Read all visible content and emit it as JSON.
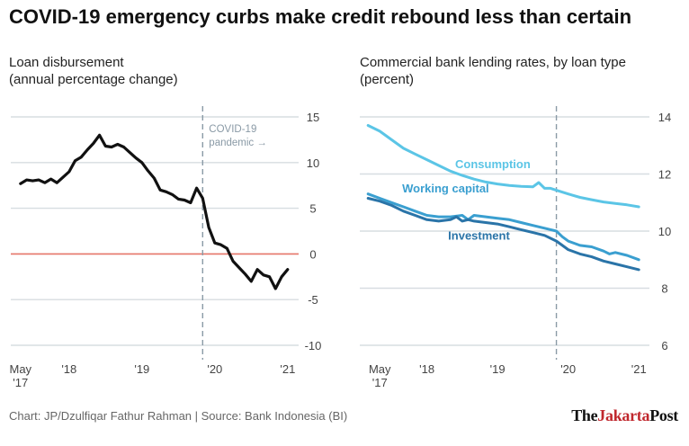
{
  "title": "COVID-19 emergency curbs make credit rebound less than certain",
  "footer": "Chart: JP/Dzulfiqar Fathur Rahman | Source: Bank Indonesia (BI)",
  "logo": {
    "part1": "The",
    "part2": "Jakarta",
    "part3": "Post"
  },
  "colors": {
    "loan": "#111111",
    "zero": "#e8776a",
    "consumption": "#5bc5e6",
    "working_capital": "#3a9fd0",
    "investment": "#2a74a8",
    "grid": "#d7dde1",
    "dashed": "#8a9aa6"
  },
  "chart_data": [
    {
      "type": "line",
      "title_lines": [
        "Loan disbursement",
        "(annual percentage change)"
      ],
      "ylim": [
        -10,
        15
      ],
      "yticks": [
        "15",
        "10",
        "5",
        "0",
        "-5",
        "-10"
      ],
      "ytick_values": [
        15,
        10,
        5,
        0,
        -5,
        -10
      ],
      "xticks": [
        {
          "label": "May",
          "label2": "'17",
          "x": 2017.333
        },
        {
          "label": "'18",
          "label2": "",
          "x": 2018.0
        },
        {
          "label": "'19",
          "label2": "",
          "x": 2019.0
        },
        {
          "label": "'20",
          "label2": "",
          "x": 2020.0
        },
        {
          "label": "'21",
          "label2": "",
          "x": 2021.0
        }
      ],
      "xlim": [
        2017.2,
        2021.15
      ],
      "annotation": {
        "lines": [
          "COVID-19",
          "pandemic →"
        ],
        "x": 2019.833
      },
      "series": [
        {
          "key": "loan",
          "x": [
            2017.333,
            2017.417,
            2017.5,
            2017.583,
            2017.667,
            2017.75,
            2017.833,
            2017.917,
            2018.0,
            2018.083,
            2018.167,
            2018.25,
            2018.333,
            2018.417,
            2018.5,
            2018.583,
            2018.667,
            2018.75,
            2018.833,
            2018.917,
            2019.0,
            2019.083,
            2019.167,
            2019.25,
            2019.333,
            2019.417,
            2019.5,
            2019.583,
            2019.667,
            2019.75,
            2019.833,
            2019.917,
            2020.0,
            2020.083,
            2020.167,
            2020.25,
            2020.333,
            2020.417,
            2020.5,
            2020.583,
            2020.667,
            2020.75,
            2020.833,
            2020.917,
            2021.0
          ],
          "values": [
            7.7,
            8.1,
            8.0,
            8.1,
            7.8,
            8.2,
            7.8,
            8.4,
            9.0,
            10.2,
            10.6,
            11.4,
            12.1,
            13.0,
            11.8,
            11.7,
            12.0,
            11.7,
            11.1,
            10.5,
            10.0,
            9.1,
            8.3,
            7.0,
            6.8,
            6.5,
            6.0,
            5.9,
            5.6,
            7.2,
            6.1,
            2.9,
            1.2,
            1.0,
            0.6,
            -0.8,
            -1.5,
            -2.2,
            -3.0,
            -1.7,
            -2.3,
            -2.5,
            -3.8,
            -2.5,
            -1.7
          ]
        }
      ]
    },
    {
      "type": "line",
      "title_lines": [
        "Commercial bank lending rates, by loan type",
        "(percent)"
      ],
      "ylim": [
        6,
        14
      ],
      "yticks": [
        "14",
        "12",
        "10",
        "8",
        "6"
      ],
      "ytick_values": [
        14,
        12,
        10,
        8,
        6
      ],
      "xticks": [
        {
          "label": "May",
          "label2": "'17",
          "x": 2017.333
        },
        {
          "label": "'18",
          "label2": "",
          "x": 2018.0
        },
        {
          "label": "'19",
          "label2": "",
          "x": 2019.0
        },
        {
          "label": "'20",
          "label2": "",
          "x": 2020.0
        },
        {
          "label": "'21",
          "label2": "",
          "x": 2021.0
        }
      ],
      "xlim": [
        2017.05,
        2021.15
      ],
      "dashed_x": 2019.833,
      "series": [
        {
          "name": "Consumption",
          "key": "consumption",
          "label_at": {
            "x": 2018.4,
            "y": 12.2
          },
          "x": [
            2017.167,
            2017.333,
            2017.5,
            2017.667,
            2017.833,
            2018.0,
            2018.167,
            2018.333,
            2018.5,
            2018.667,
            2018.833,
            2019.0,
            2019.167,
            2019.333,
            2019.5,
            2019.583,
            2019.667,
            2019.75,
            2019.833,
            2020.0,
            2020.167,
            2020.333,
            2020.5,
            2020.667,
            2020.833,
            2021.0
          ],
          "values": [
            13.7,
            13.5,
            13.2,
            12.9,
            12.7,
            12.5,
            12.3,
            12.1,
            11.95,
            11.82,
            11.72,
            11.65,
            11.6,
            11.57,
            11.55,
            11.7,
            11.5,
            11.5,
            11.43,
            11.3,
            11.18,
            11.1,
            11.02,
            10.97,
            10.92,
            10.85
          ]
        },
        {
          "name": "Working capital",
          "key": "working_capital",
          "label_at": {
            "x": 2017.65,
            "y": 11.35
          },
          "x": [
            2017.167,
            2017.333,
            2017.5,
            2017.667,
            2017.833,
            2018.0,
            2018.167,
            2018.333,
            2018.5,
            2018.583,
            2018.667,
            2018.833,
            2019.0,
            2019.167,
            2019.333,
            2019.5,
            2019.667,
            2019.833,
            2019.917,
            2020.0,
            2020.167,
            2020.333,
            2020.5,
            2020.583,
            2020.667,
            2020.833,
            2021.0
          ],
          "values": [
            11.3,
            11.15,
            11.0,
            10.85,
            10.7,
            10.55,
            10.5,
            10.5,
            10.55,
            10.4,
            10.55,
            10.5,
            10.45,
            10.4,
            10.3,
            10.2,
            10.1,
            10.0,
            9.8,
            9.65,
            9.5,
            9.45,
            9.3,
            9.2,
            9.25,
            9.15,
            9.0
          ]
        },
        {
          "name": "Investment",
          "key": "investment",
          "label_at": {
            "x": 2018.3,
            "y": 9.7
          },
          "x": [
            2017.167,
            2017.333,
            2017.5,
            2017.667,
            2017.833,
            2018.0,
            2018.167,
            2018.333,
            2018.417,
            2018.5,
            2018.583,
            2018.667,
            2018.833,
            2019.0,
            2019.167,
            2019.333,
            2019.5,
            2019.667,
            2019.833,
            2019.917,
            2020.0,
            2020.167,
            2020.333,
            2020.5,
            2020.667,
            2020.833,
            2021.0
          ],
          "values": [
            11.15,
            11.05,
            10.9,
            10.7,
            10.55,
            10.4,
            10.35,
            10.4,
            10.5,
            10.35,
            10.4,
            10.35,
            10.3,
            10.25,
            10.15,
            10.05,
            9.95,
            9.85,
            9.65,
            9.5,
            9.35,
            9.2,
            9.1,
            8.95,
            8.85,
            8.75,
            8.65
          ]
        }
      ]
    }
  ]
}
